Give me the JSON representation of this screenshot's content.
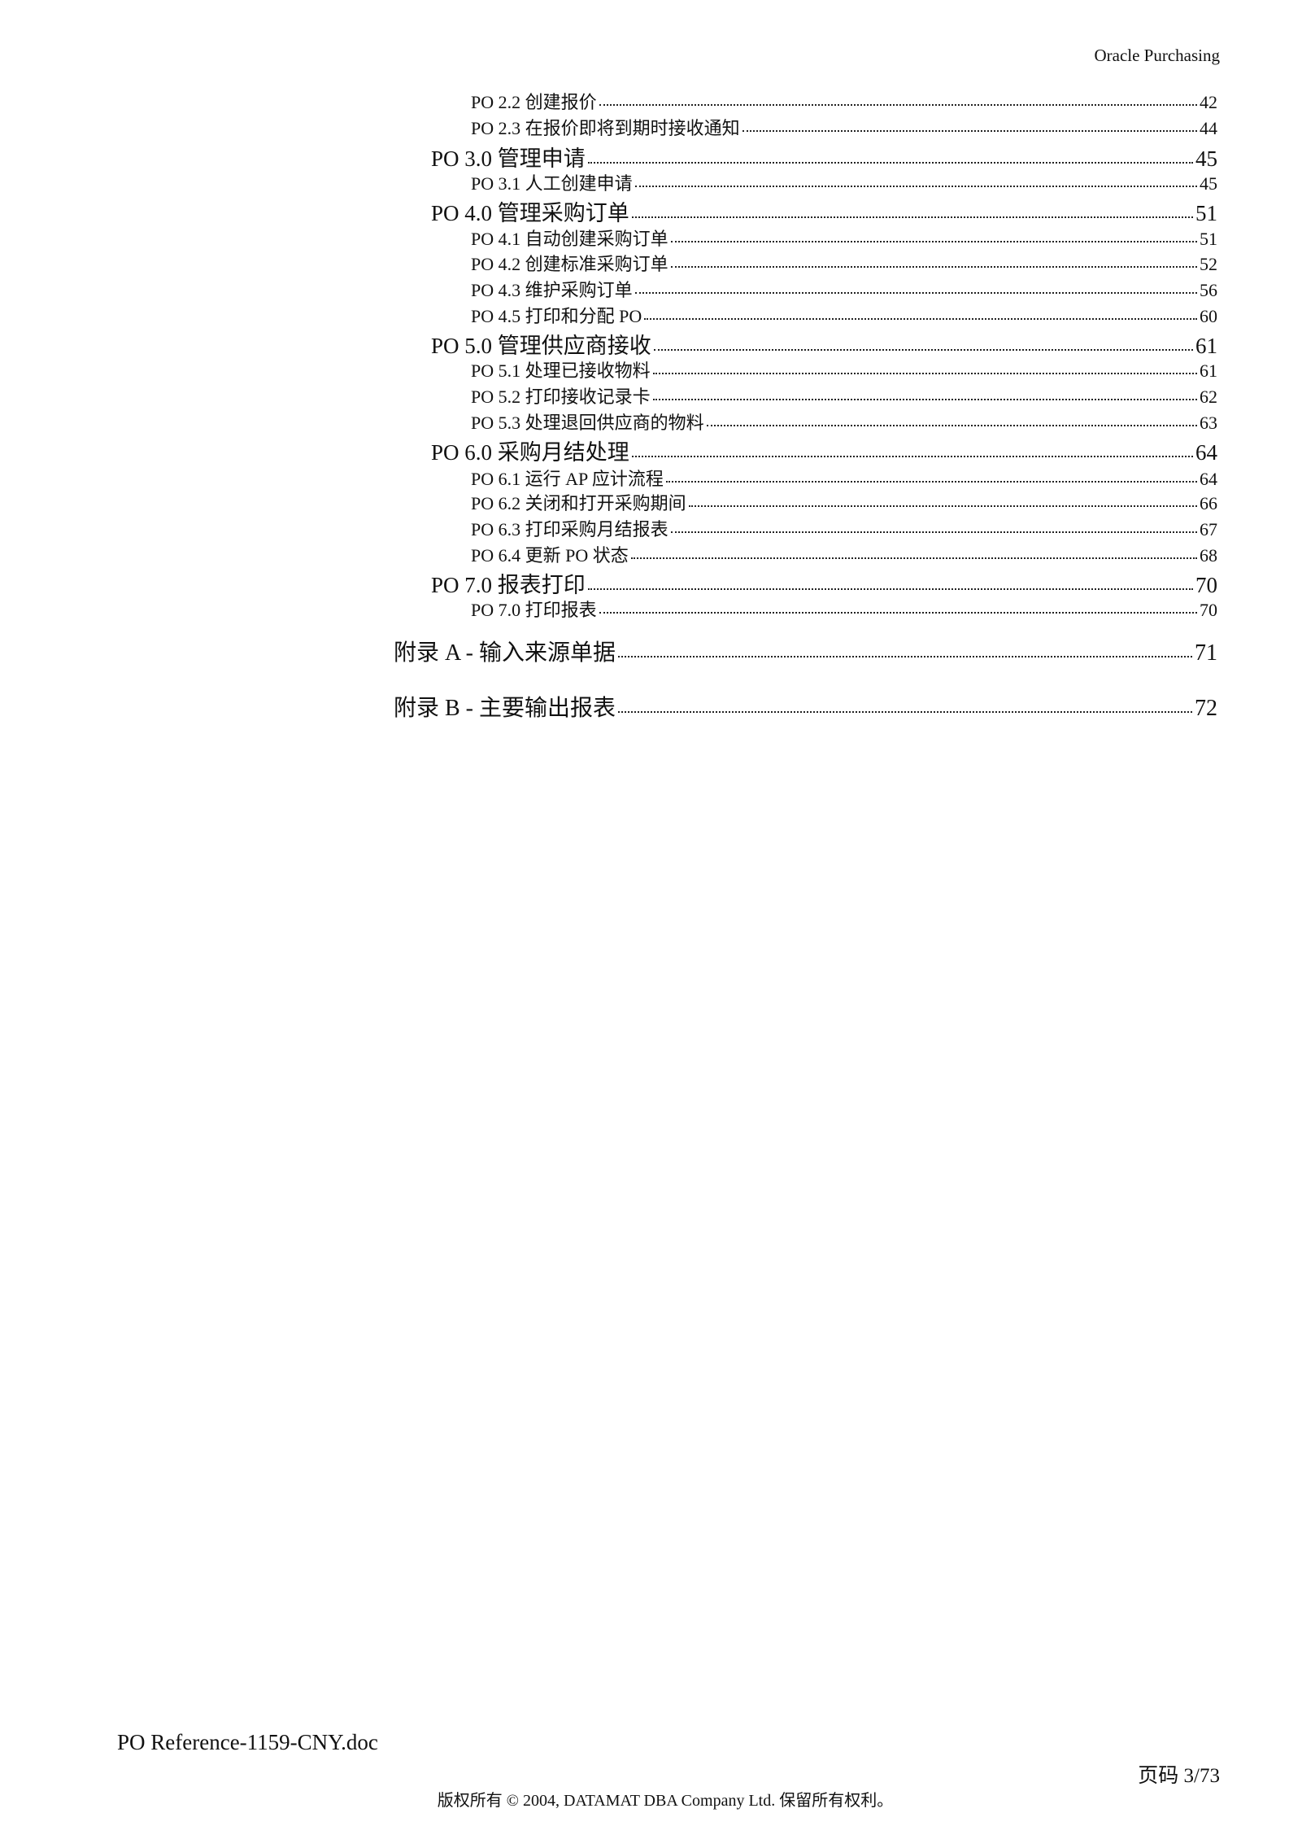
{
  "header": {
    "title": "Oracle Purchasing"
  },
  "toc": [
    {
      "level": 2,
      "label": "PO 2.2 创建报价",
      "page": "42"
    },
    {
      "level": 2,
      "label": "PO 2.3 在报价即将到期时接收通知",
      "page": "44"
    },
    {
      "level": 1,
      "label": "PO 3.0 管理申请",
      "page": "45"
    },
    {
      "level": 2,
      "label": "PO 3.1 人工创建申请",
      "page": "45"
    },
    {
      "level": 1,
      "label": "PO 4.0 管理采购订单",
      "page": "51"
    },
    {
      "level": 2,
      "label": "PO 4.1 自动创建采购订单",
      "page": "51"
    },
    {
      "level": 2,
      "label": "PO 4.2 创建标准采购订单",
      "page": "52"
    },
    {
      "level": 2,
      "label": "PO 4.3 维护采购订单",
      "page": "56"
    },
    {
      "level": 2,
      "label": "PO 4.5 打印和分配 PO",
      "page": "60"
    },
    {
      "level": 1,
      "label": "PO 5.0 管理供应商接收",
      "page": "61"
    },
    {
      "level": 2,
      "label": "PO 5.1 处理已接收物料",
      "page": "61"
    },
    {
      "level": 2,
      "label": "PO 5.2 打印接收记录卡",
      "page": "62"
    },
    {
      "level": 2,
      "label": "PO 5.3 处理退回供应商的物料",
      "page": "63"
    },
    {
      "level": 1,
      "label": "PO 6.0 采购月结处理",
      "page": "64"
    },
    {
      "level": 2,
      "label": "PO 6.1 运行 AP 应计流程",
      "page": "64"
    },
    {
      "level": 2,
      "label": "PO 6.2 关闭和打开采购期间",
      "page": "66"
    },
    {
      "level": 2,
      "label": "PO 6.3 打印采购月结报表",
      "page": "67"
    },
    {
      "level": 2,
      "label": "PO 6.4 更新 PO 状态",
      "page": "68"
    },
    {
      "level": 1,
      "label": "PO 7.0 报表打印",
      "page": "70"
    },
    {
      "level": 2,
      "label": "PO 7.0 打印报表",
      "page": "70"
    },
    {
      "level": 0,
      "label": "附录 A - 输入来源单据",
      "page": "71"
    },
    {
      "level": 0,
      "label": "附录 B - 主要输出报表",
      "page": "72"
    }
  ],
  "footer": {
    "doc_name": "PO Reference-1159-CNY.doc",
    "page_label": "页码 3/73",
    "copyright": "版权所有 © 2004, DATAMAT DBA Company Ltd. 保留所有权利。"
  }
}
